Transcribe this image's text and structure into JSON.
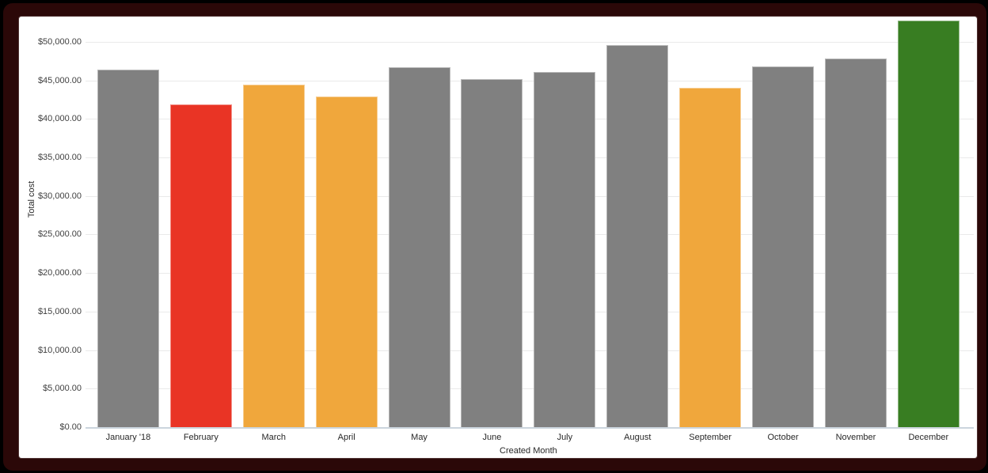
{
  "colors": {
    "page_background": "#000000",
    "frame_border": "#2B0808",
    "card_background": "#FFFFFF",
    "gridline": "#EAEAEA",
    "axis_line": "#CBD5DD",
    "tick_text": "#3F3F3F",
    "bar_gray": "#808080",
    "bar_red": "#E93425",
    "bar_orange": "#F0A73C",
    "bar_green": "#387D22"
  },
  "chart_data": {
    "type": "bar",
    "title": "",
    "xlabel": "Created Month",
    "ylabel": "Total cost",
    "categories": [
      "January '18",
      "February",
      "March",
      "April",
      "May",
      "June",
      "July",
      "August",
      "September",
      "October",
      "November",
      "December"
    ],
    "values": [
      46400,
      41900,
      44500,
      42900,
      46700,
      45200,
      46100,
      49600,
      44000,
      46800,
      47800,
      52800
    ],
    "bar_colors": [
      "#808080",
      "#E93425",
      "#F0A73C",
      "#F0A73C",
      "#808080",
      "#808080",
      "#808080",
      "#808080",
      "#F0A73C",
      "#808080",
      "#808080",
      "#387D22"
    ],
    "y_ticks": [
      0,
      5000,
      10000,
      15000,
      20000,
      25000,
      30000,
      35000,
      40000,
      45000,
      50000
    ],
    "y_tick_labels": [
      "$0.00",
      "$5,000.00",
      "$10,000.00",
      "$15,000.00",
      "$20,000.00",
      "$25,000.00",
      "$30,000.00",
      "$35,000.00",
      "$40,000.00",
      "$45,000.00",
      "$50,000.00"
    ],
    "ylim": [
      0,
      52970
    ],
    "grid": true,
    "legend": false
  }
}
